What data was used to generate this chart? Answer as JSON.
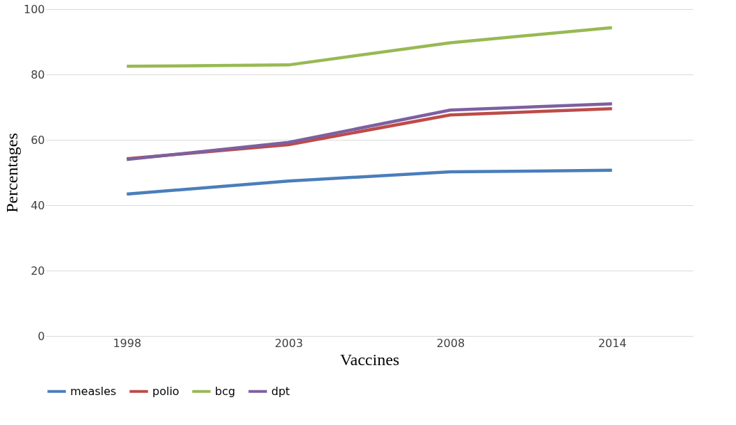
{
  "chart_data": {
    "type": "line",
    "xlabel": "Vaccines",
    "ylabel": "Percentages",
    "categories": [
      "1998",
      "2003",
      "2008",
      "2014"
    ],
    "series": [
      {
        "name": "measles",
        "color": "#4a7ebb",
        "values": [
          43.4,
          47.4,
          50.2,
          50.7
        ]
      },
      {
        "name": "polio",
        "color": "#be4b48",
        "values": [
          54.2,
          58.5,
          67.6,
          69.5
        ]
      },
      {
        "name": "bcg",
        "color": "#98b954",
        "values": [
          82.5,
          82.9,
          89.7,
          94.3
        ]
      },
      {
        "name": "dpt",
        "color": "#7d60a0",
        "values": [
          54.0,
          59.2,
          69.1,
          71.0
        ]
      }
    ],
    "ylim": [
      0,
      100
    ],
    "yticks": [
      0,
      20,
      40,
      60,
      80,
      100
    ],
    "grid": "y",
    "legend": "bottom",
    "marker": "none",
    "line_style": "solid"
  }
}
